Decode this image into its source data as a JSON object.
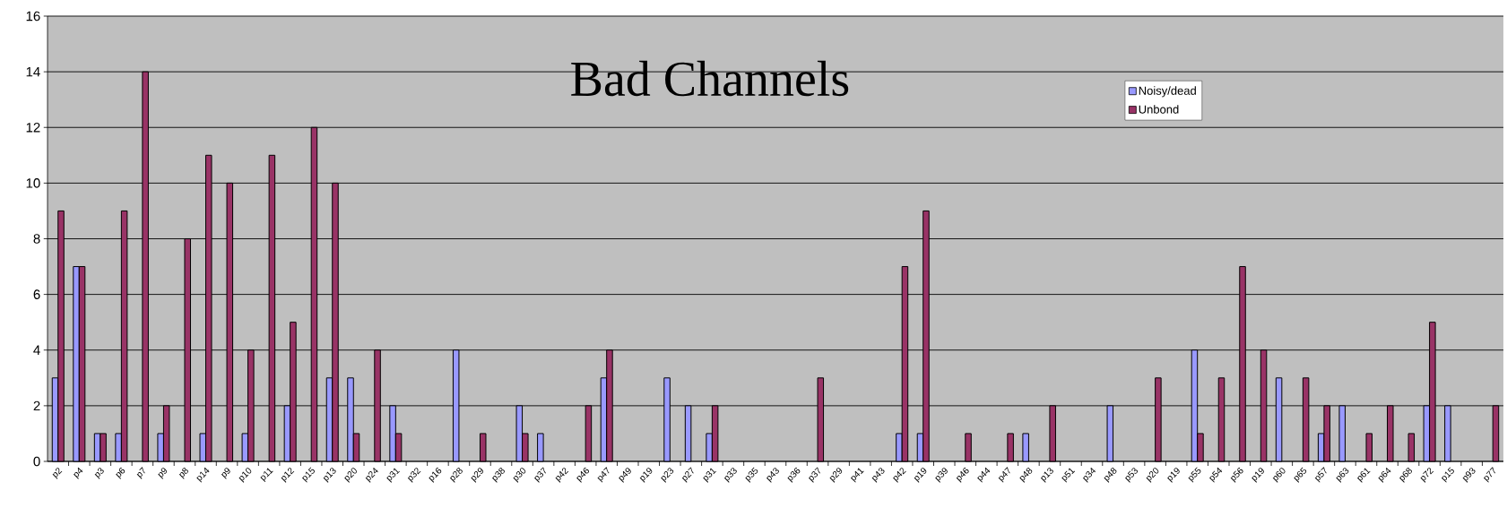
{
  "chart_data": {
    "type": "bar",
    "title": "Bad Channels",
    "categories": [
      "p2",
      "p4",
      "p3",
      "p6",
      "p7",
      "p9",
      "p8",
      "p14",
      "p9",
      "p10",
      "p11",
      "p12",
      "p15",
      "p13",
      "p20",
      "p24",
      "p31",
      "p32",
      "p16",
      "p28",
      "p29",
      "p38",
      "p30",
      "p37",
      "p42",
      "p46",
      "p47",
      "p49",
      "p19",
      "p23",
      "p27",
      "p31",
      "p33",
      "p35",
      "p43",
      "p36",
      "p37",
      "p29",
      "p41",
      "p43",
      "p42",
      "p19",
      "p39",
      "p46",
      "p44",
      "p47",
      "p48",
      "p13",
      "p51",
      "p34",
      "p48",
      "p53",
      "p20",
      "p19",
      "p55",
      "p54",
      "p56",
      "p19",
      "p60",
      "p65",
      "p57",
      "p63",
      "p61",
      "p64",
      "p68",
      "p72",
      "p15",
      "p93",
      "p77"
    ],
    "series": [
      {
        "name": "Noisy/dead",
        "color": "#9999ff",
        "values": [
          3,
          7,
          1,
          1,
          0,
          1,
          0,
          1,
          0,
          1,
          0,
          2,
          0,
          3,
          3,
          0,
          2,
          0,
          0,
          4,
          0,
          0,
          2,
          1,
          0,
          0,
          3,
          0,
          0,
          3,
          2,
          1,
          0,
          0,
          0,
          0,
          0,
          0,
          0,
          0,
          1,
          1,
          0,
          0,
          0,
          0,
          1,
          0,
          0,
          0,
          2,
          0,
          0,
          0,
          4,
          0,
          0,
          0,
          3,
          0,
          1,
          2,
          0,
          0,
          0,
          2,
          2,
          0,
          0
        ]
      },
      {
        "name": "Unbond",
        "color": "#993366",
        "values": [
          9,
          7,
          1,
          9,
          14,
          2,
          8,
          11,
          10,
          4,
          11,
          5,
          12,
          10,
          1,
          4,
          1,
          0,
          0,
          0,
          1,
          0,
          1,
          0,
          0,
          2,
          4,
          0,
          0,
          0,
          0,
          2,
          0,
          0,
          0,
          0,
          3,
          0,
          0,
          0,
          7,
          9,
          0,
          1,
          0,
          1,
          0,
          2,
          0,
          0,
          0,
          0,
          3,
          0,
          1,
          3,
          7,
          4,
          0,
          3,
          2,
          0,
          1,
          2,
          1,
          5,
          0,
          0,
          2
        ]
      }
    ],
    "ylim": [
      0,
      16
    ],
    "yticks": [
      0,
      2,
      4,
      6,
      8,
      10,
      12,
      14,
      16
    ],
    "grid": "y",
    "legend": "top right"
  }
}
